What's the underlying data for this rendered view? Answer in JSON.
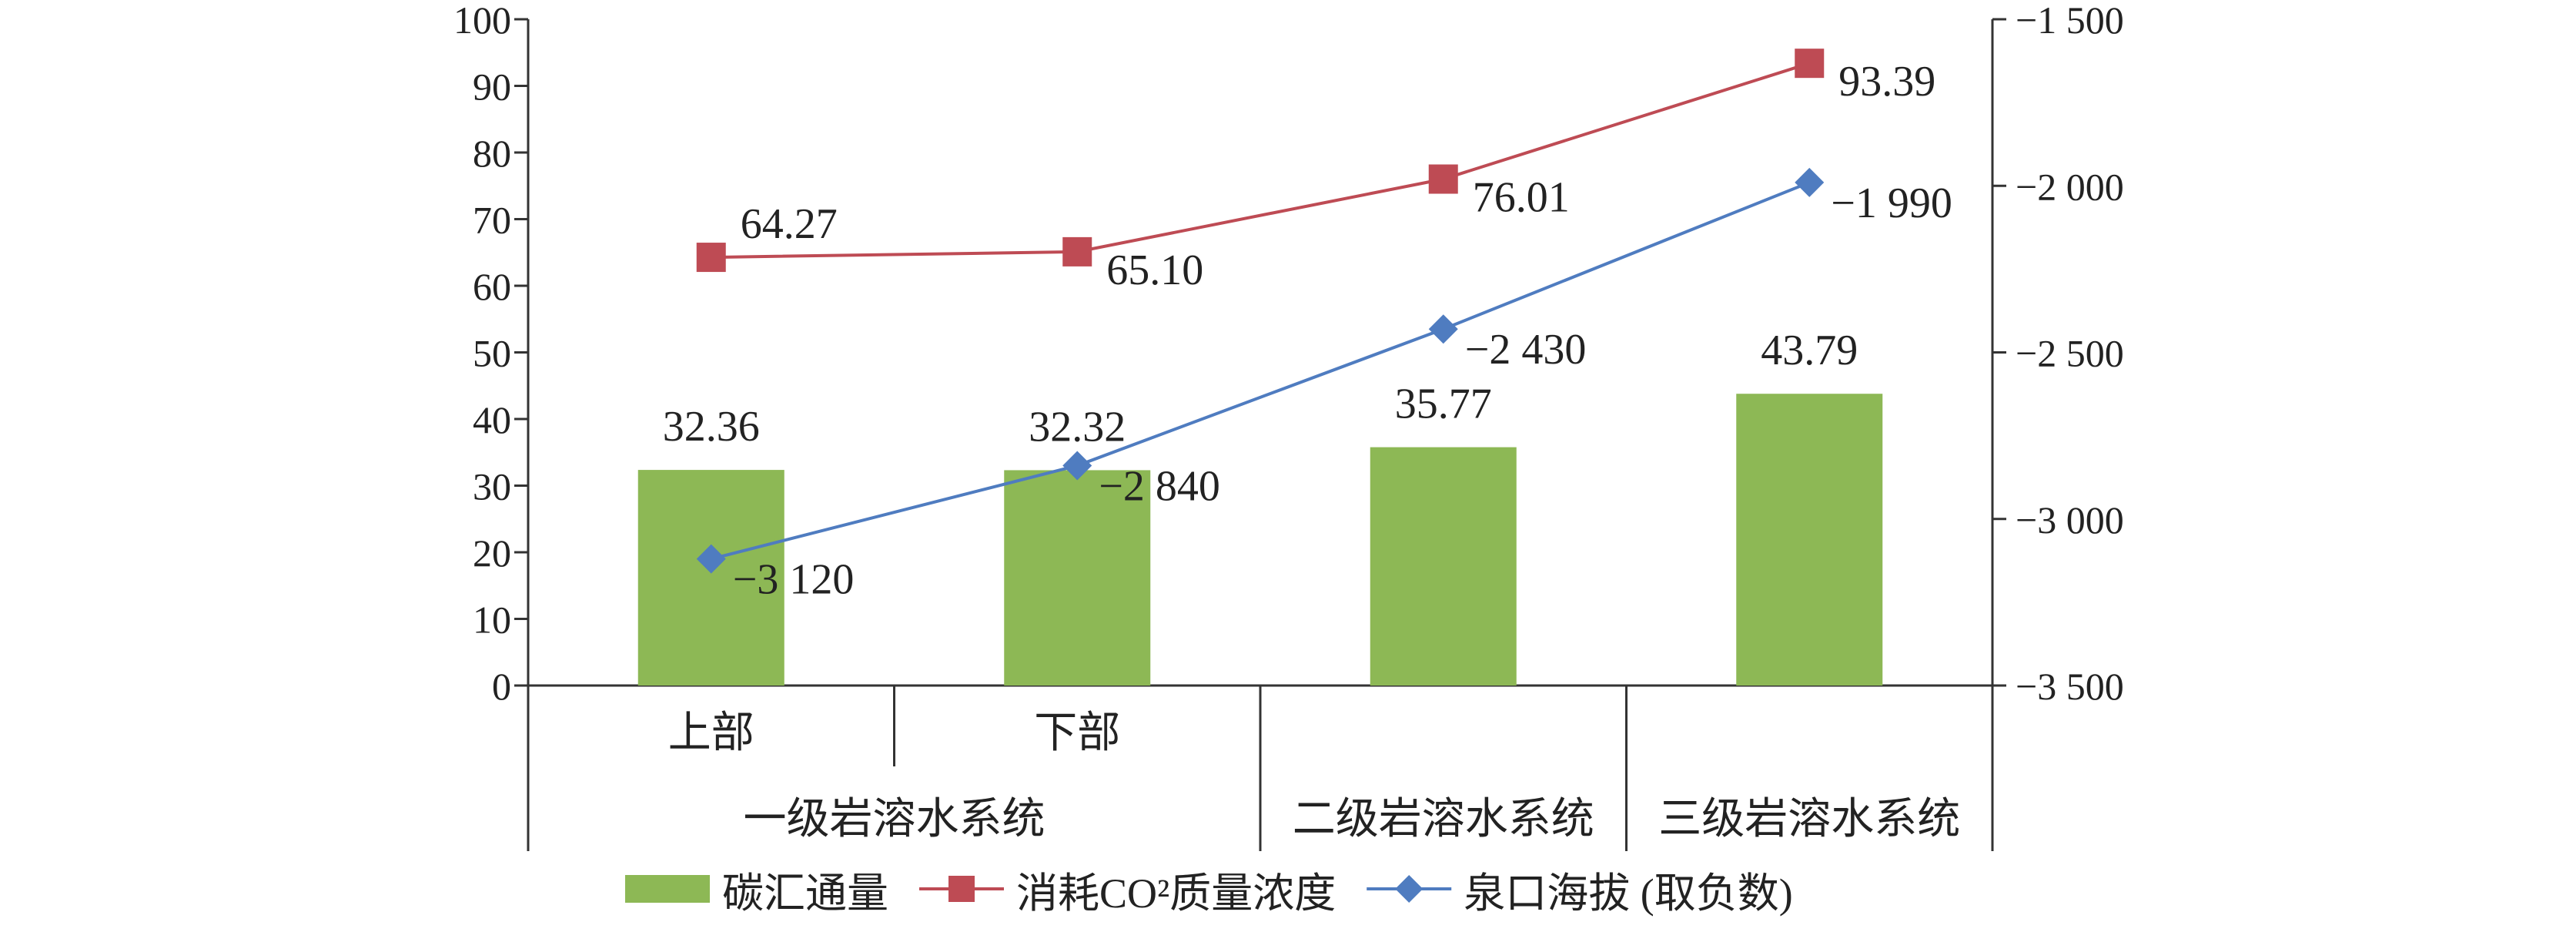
{
  "chart_data": {
    "type": "bar",
    "categories": [
      "上部",
      "下部",
      "二级岩溶水系统",
      "三级岩溶水系统"
    ],
    "category_groups": [
      {
        "label": "一级岩溶水系统",
        "members": [
          "上部",
          "下部"
        ]
      },
      {
        "label": "二级岩溶水系统",
        "members": [
          "二级岩溶水系统"
        ]
      },
      {
        "label": "三级岩溶水系统",
        "members": [
          "三级岩溶水系统"
        ]
      }
    ],
    "series": [
      {
        "name": "碳汇通量",
        "type": "bar",
        "axis": "left",
        "color": "#8DB855",
        "values": [
          32.36,
          32.32,
          35.77,
          43.79
        ],
        "labels": [
          "32.36",
          "32.32",
          "35.77",
          "43.79"
        ]
      },
      {
        "name": "消耗CO²质量浓度",
        "type": "line",
        "marker": "square",
        "axis": "left",
        "color": "#BE4B54",
        "values": [
          64.27,
          65.1,
          76.01,
          93.39
        ],
        "labels": [
          "64.27",
          "65.10",
          "76.01",
          "93.39"
        ]
      },
      {
        "name": "泉口海拔 (取负数)",
        "type": "line",
        "marker": "diamond",
        "axis": "right",
        "color": "#4F7CC0",
        "values": [
          -3120,
          -2840,
          -2430,
          -1990
        ],
        "labels": [
          "−3 120",
          "−2 840",
          "−2 430",
          "−1 990"
        ]
      }
    ],
    "left_axis": {
      "ylim": [
        0,
        100
      ],
      "ticks": [
        0,
        10,
        20,
        30,
        40,
        50,
        60,
        70,
        80,
        90,
        100
      ],
      "tick_labels": [
        "0",
        "10",
        "20",
        "30",
        "40",
        "50",
        "60",
        "70",
        "80",
        "90",
        "100"
      ]
    },
    "right_axis": {
      "ylim": [
        -3500,
        -1500
      ],
      "ticks": [
        -3500,
        -3000,
        -2500,
        -2000,
        -1500
      ],
      "tick_labels": [
        "−3 500",
        "−3 000",
        "−2 500",
        "−2 000",
        "−1 500"
      ]
    },
    "grid": false,
    "legend": "bottom"
  }
}
